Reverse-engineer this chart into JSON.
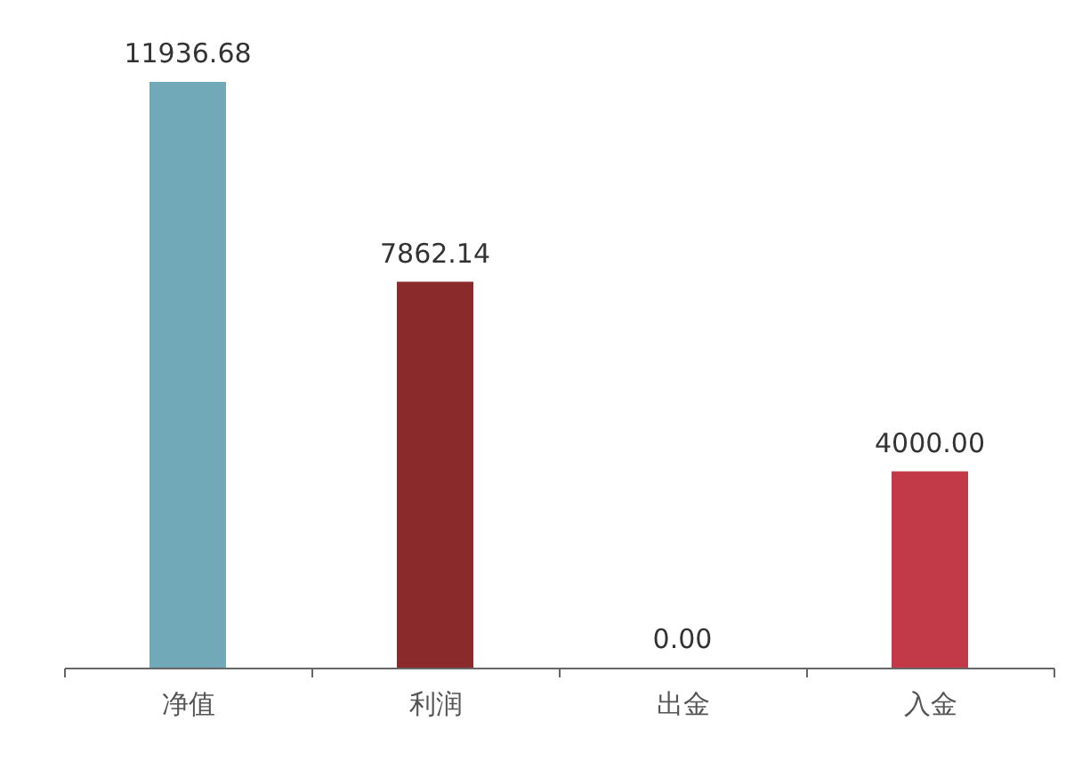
{
  "chart_data": {
    "type": "bar",
    "categories": [
      "净值",
      "利润",
      "出金",
      "入金"
    ],
    "values": [
      11936.68,
      7862.14,
      0,
      4000
    ],
    "colors": [
      "#72a9b9",
      "#8b2a2a",
      "#8b2a2a",
      "#c23a48"
    ],
    "value_labels": [
      "11936.68",
      "7862.14",
      "0.00",
      "4000.00"
    ],
    "grid": false
  }
}
